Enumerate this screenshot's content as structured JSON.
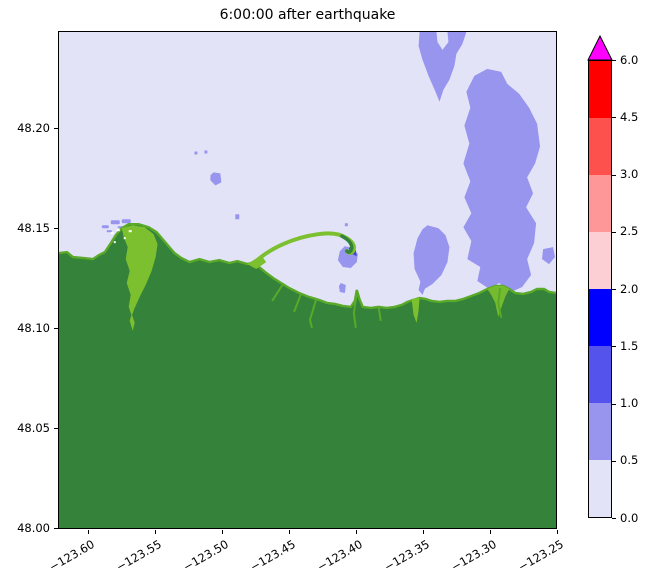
{
  "figure": {
    "title": "6:00:00 after earthquake",
    "background_color": "#ffffff"
  },
  "axes": {
    "x_tick_labels": [
      "−123.60",
      "−123.55",
      "−123.50",
      "−123.45",
      "−123.40",
      "−123.35",
      "−123.30",
      "−123.25"
    ],
    "y_tick_labels": [
      "48.00",
      "48.05",
      "48.10",
      "48.15",
      "48.20"
    ],
    "frame_color": "#000000"
  },
  "colorbar": {
    "tick_labels": [
      "0.0",
      "0.5",
      "1.0",
      "1.5",
      "2.0",
      "2.5",
      "3.0",
      "4.5",
      "6.0"
    ],
    "segment_colors_bottom_to_top": [
      "#e3e3f8",
      "#9795ee",
      "#5453ec",
      "#0000fe",
      "#fbcfd4",
      "#fe9898",
      "#fd514d",
      "#fe0000"
    ],
    "over_color": "#ff00fe",
    "extend": "max",
    "spacing": "uniform"
  },
  "map": {
    "colors": {
      "water": "#e3e3f8",
      "wave1": "#9795ee",
      "wave2": "#4343dd",
      "land": "#35823a",
      "landLight": "#7cc02f",
      "landEdge": "#58aa28"
    }
  },
  "chart_data": {
    "type": "heatmap",
    "title": "6:00:00 after earthquake",
    "xlabel": "",
    "ylabel": "",
    "x_ticks": [
      -123.6,
      -123.55,
      -123.5,
      -123.45,
      -123.4,
      -123.35,
      -123.3,
      -123.25
    ],
    "y_ticks": [
      48.0,
      48.05,
      48.1,
      48.15,
      48.2
    ],
    "xlim": [
      -123.622,
      -123.25
    ],
    "ylim": [
      48.0,
      48.249
    ],
    "grid": false,
    "x_tick_rotation_deg": 30,
    "colorbar": {
      "boundaries_m": [
        0.0,
        0.5,
        1.0,
        1.5,
        2.0,
        2.5,
        3.0,
        4.5,
        6.0
      ],
      "colors_low_to_high": [
        "#e3e3f8",
        "#9795ee",
        "#5453ec",
        "#0000fe",
        "#fbcfd4",
        "#fe9898",
        "#fd514d",
        "#fe0000"
      ],
      "over_color": "#ff00fe",
      "extend": "max",
      "position": "right",
      "spacing": "uniform"
    },
    "features": {
      "land": {
        "color": "#35823a",
        "description": "Dark green landmass filling the lower third of the map; wavy coastline between lat 48.11 and 48.152 with a rounded headland/delta near lon -123.56 and light yellow-green river-delta and shoreline fringes"
      },
      "water_background": {
        "wave_height_range_m": [
          0.0,
          0.5
        ],
        "color": "#e3e3f8",
        "description": "Pale lavender water covering most of the strait"
      },
      "spit": {
        "description": "Thin curved yellow-green sand spit arcing east-northeast from the shore at lon -123.48, lat 48.133 and hooking south around a small lagoon near lon -123.405, lat 48.14",
        "lon_range": [
          -123.48,
          -123.4
        ],
        "lat_range": [
          48.133,
          48.148
        ]
      },
      "wave_patches_0p5_to_1p0_m": [
        {
          "name": "north-channel-plume",
          "lon_range": [
            -123.35,
            -123.32
          ],
          "lat_range": [
            48.214,
            48.249
          ]
        },
        {
          "name": "large-eastern-plume",
          "lon_range": [
            -123.32,
            -123.26
          ],
          "lat_range": [
            48.12,
            48.23
          ]
        },
        {
          "name": "eastern-fragment",
          "lon_range": [
            -123.26,
            -123.25
          ],
          "lat_range": [
            48.132,
            48.14
          ]
        },
        {
          "name": "mid-bay-patch",
          "lon_range": [
            -123.36,
            -123.33
          ],
          "lat_range": [
            48.12,
            48.152
          ]
        },
        {
          "name": "lagoon-inside-spit",
          "lon_range": [
            -123.42,
            -123.4
          ],
          "lat_range": [
            48.13,
            48.142
          ],
          "note": "small darker blue (1.0-1.5 m) sliver at its north edge"
        },
        {
          "name": "small-offshore-patch",
          "lon_range": [
            -123.51,
            -123.5
          ],
          "lat_range": [
            48.172,
            48.179
          ]
        },
        {
          "name": "headland-tip-specks",
          "lon_range": [
            -123.59,
            -123.57
          ],
          "lat_range": [
            48.148,
            48.153
          ]
        }
      ]
    }
  }
}
